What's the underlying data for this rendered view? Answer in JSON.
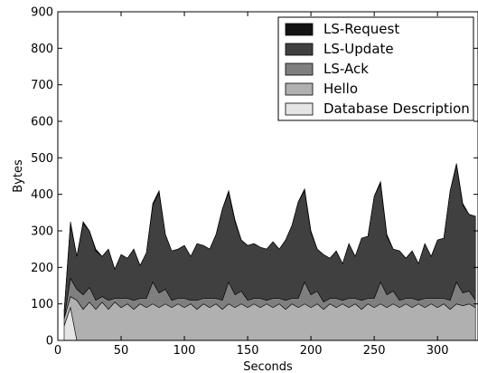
{
  "chart_data": {
    "type": "area",
    "stacked": true,
    "xlabel": "Seconds",
    "ylabel": "Bytes",
    "xlim": [
      0,
      332
    ],
    "ylim": [
      0,
      900
    ],
    "xticks": [
      0,
      50,
      100,
      150,
      200,
      250,
      300
    ],
    "yticks": [
      0,
      100,
      200,
      300,
      400,
      500,
      600,
      700,
      800,
      900
    ],
    "grid": false,
    "legend_position": "top-right",
    "x": [
      5,
      10,
      15,
      20,
      25,
      30,
      35,
      40,
      45,
      50,
      55,
      60,
      65,
      70,
      75,
      80,
      85,
      90,
      95,
      100,
      105,
      110,
      115,
      120,
      125,
      130,
      135,
      140,
      145,
      150,
      155,
      160,
      165,
      170,
      175,
      180,
      185,
      190,
      195,
      200,
      205,
      210,
      215,
      220,
      225,
      230,
      235,
      240,
      245,
      250,
      255,
      260,
      265,
      270,
      275,
      280,
      285,
      290,
      295,
      300,
      305,
      310,
      315,
      320,
      325,
      330
    ],
    "series": [
      {
        "name": "Database Description",
        "color": "#e5e5e5",
        "values": [
          40,
          90,
          0,
          0,
          0,
          0,
          0,
          0,
          0,
          0,
          0,
          0,
          0,
          0,
          0,
          0,
          0,
          0,
          0,
          0,
          0,
          0,
          0,
          0,
          0,
          0,
          0,
          0,
          0,
          0,
          0,
          0,
          0,
          0,
          0,
          0,
          0,
          0,
          0,
          0,
          0,
          0,
          0,
          0,
          0,
          0,
          0,
          0,
          0,
          0,
          0,
          0,
          0,
          0,
          0,
          0,
          0,
          0,
          0,
          0,
          0,
          0,
          0,
          0,
          0,
          0
        ]
      },
      {
        "name": "Hello",
        "color": "#b0b0b0",
        "values": [
          20,
          30,
          110,
          85,
          105,
          85,
          105,
          85,
          105,
          90,
          100,
          85,
          100,
          90,
          100,
          90,
          100,
          90,
          100,
          90,
          100,
          85,
          100,
          90,
          100,
          85,
          100,
          90,
          100,
          90,
          100,
          90,
          100,
          90,
          100,
          85,
          100,
          90,
          100,
          90,
          100,
          85,
          100,
          90,
          100,
          90,
          100,
          85,
          100,
          90,
          100,
          90,
          100,
          90,
          100,
          90,
          100,
          90,
          100,
          90,
          100,
          85,
          100,
          95,
          100,
          90
        ]
      },
      {
        "name": "LS-Ack",
        "color": "#7f7f7f",
        "values": [
          0,
          50,
          30,
          40,
          40,
          25,
          15,
          25,
          10,
          25,
          15,
          25,
          15,
          25,
          60,
          40,
          40,
          20,
          15,
          25,
          10,
          25,
          15,
          25,
          15,
          25,
          60,
          35,
          35,
          20,
          15,
          25,
          10,
          25,
          15,
          25,
          15,
          25,
          60,
          35,
          35,
          20,
          15,
          25,
          10,
          25,
          15,
          25,
          15,
          25,
          60,
          35,
          35,
          20,
          15,
          25,
          10,
          25,
          15,
          25,
          15,
          25,
          60,
          35,
          35,
          20
        ]
      },
      {
        "name": "LS-Update",
        "color": "#404040",
        "values": [
          20,
          150,
          90,
          195,
          155,
          135,
          110,
          140,
          80,
          120,
          110,
          140,
          90,
          125,
          210,
          275,
          150,
          135,
          135,
          145,
          120,
          155,
          145,
          135,
          175,
          250,
          245,
          200,
          140,
          150,
          150,
          140,
          140,
          155,
          135,
          165,
          200,
          265,
          250,
          170,
          115,
          130,
          110,
          130,
          100,
          150,
          115,
          170,
          170,
          280,
          270,
          160,
          115,
          135,
          110,
          130,
          100,
          150,
          115,
          160,
          165,
          300,
          320,
          240,
          210,
          230
        ]
      },
      {
        "name": "LS-Request",
        "color": "#141414",
        "values": [
          0,
          5,
          0,
          5,
          0,
          5,
          0,
          0,
          0,
          0,
          0,
          0,
          0,
          0,
          5,
          5,
          0,
          0,
          0,
          0,
          0,
          0,
          0,
          0,
          0,
          0,
          5,
          5,
          0,
          0,
          0,
          0,
          0,
          0,
          0,
          0,
          0,
          0,
          5,
          5,
          0,
          0,
          0,
          0,
          0,
          0,
          0,
          0,
          0,
          0,
          5,
          5,
          0,
          0,
          0,
          0,
          0,
          0,
          0,
          0,
          0,
          0,
          5,
          5,
          0,
          0
        ]
      }
    ]
  }
}
